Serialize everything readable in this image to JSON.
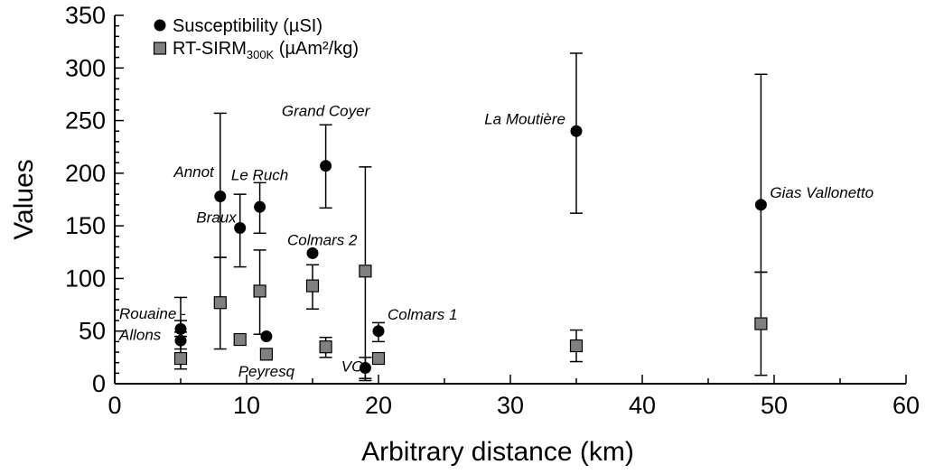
{
  "chart_data": {
    "type": "scatter",
    "title": "",
    "xlabel": "Arbitrary distance (km)",
    "ylabel": "Values",
    "xlim": [
      0,
      60
    ],
    "ylim": [
      0,
      350
    ],
    "xticks": [
      "0",
      "10",
      "20",
      "30",
      "40",
      "50",
      "60"
    ],
    "yticks": [
      "0",
      "50",
      "100",
      "150",
      "200",
      "250",
      "300",
      "350"
    ],
    "grid": false,
    "legend_position": "top-left",
    "legend": [
      {
        "name": "Susceptibility (µSI)",
        "marker": "circle",
        "color": "#000000"
      },
      {
        "name": "RT-SIRM",
        "subscript": "300K",
        "suffix": " (µAm²/kg)",
        "marker": "square",
        "color": "#808080"
      }
    ],
    "series": [
      {
        "name": "Susceptibility (µSI)",
        "marker": "circle",
        "color": "#000000",
        "points": [
          {
            "x": 5,
            "y": 52,
            "err_low": 45,
            "err_high": 60
          },
          {
            "x": 5,
            "y": 41,
            "err_low": 33,
            "err_high": 49
          },
          {
            "x": 8,
            "y": 178,
            "err_low": 120,
            "err_high": 257
          },
          {
            "x": 9.5,
            "y": 148,
            "err_low": 111,
            "err_high": 180
          },
          {
            "x": 11,
            "y": 168,
            "err_low": 143,
            "err_high": 191
          },
          {
            "x": 11.5,
            "y": 45
          },
          {
            "x": 15,
            "y": 124
          },
          {
            "x": 16,
            "y": 207,
            "err_low": 167,
            "err_high": 246
          },
          {
            "x": 19,
            "y": 15,
            "err_low": 5,
            "err_high": 25
          },
          {
            "x": 20,
            "y": 50,
            "err_low": 40,
            "err_high": 58
          },
          {
            "x": 35,
            "y": 240,
            "err_low": 162,
            "err_high": 314
          },
          {
            "x": 49,
            "y": 170,
            "err_low": 106,
            "err_high": 294
          }
        ]
      },
      {
        "name": "RT-SIRM300K (µAm²/kg)",
        "marker": "square",
        "color": "#808080",
        "points": [
          {
            "x": 5,
            "y": 24,
            "err_low": 14,
            "err_high": 82
          },
          {
            "x": 8,
            "y": 77,
            "err_low": 33,
            "err_high": 120
          },
          {
            "x": 9.5,
            "y": 42
          },
          {
            "x": 11,
            "y": 88,
            "err_low": 47,
            "err_high": 127
          },
          {
            "x": 11.5,
            "y": 28
          },
          {
            "x": 15,
            "y": 93,
            "err_low": 71,
            "err_high": 113
          },
          {
            "x": 16,
            "y": 35,
            "err_low": 25,
            "err_high": 44
          },
          {
            "x": 19,
            "y": 107,
            "err_low": 3,
            "err_high": 206
          },
          {
            "x": 20,
            "y": 24
          },
          {
            "x": 35,
            "y": 36,
            "err_low": 21,
            "err_high": 51
          },
          {
            "x": 49,
            "y": 57,
            "err_low": 8,
            "err_high": 106
          }
        ]
      }
    ],
    "annotations": [
      {
        "text": "Rouaine -",
        "x": 5,
        "y": 66
      },
      {
        "text": "Allons",
        "x": 5,
        "y": 46
      },
      {
        "text": "Annot",
        "x": 8,
        "y": 198
      },
      {
        "text": "Braux",
        "x": 9.5,
        "y": 155
      },
      {
        "text": "Le Ruch",
        "x": 11,
        "y": 195
      },
      {
        "text": "Peyresq",
        "x": 11.5,
        "y": 12
      },
      {
        "text": "Colmars 2",
        "x": 15,
        "y": 135
      },
      {
        "text": "Grand Coyer",
        "x": 16,
        "y": 256
      },
      {
        "text": "VC",
        "x": 19,
        "y": 16
      },
      {
        "text": "Colmars 1",
        "x": 20,
        "y": 66
      },
      {
        "text": "La Moutière",
        "x": 35,
        "y": 250
      },
      {
        "text": "Gias Vallonetto",
        "x": 49,
        "y": 180
      }
    ]
  }
}
